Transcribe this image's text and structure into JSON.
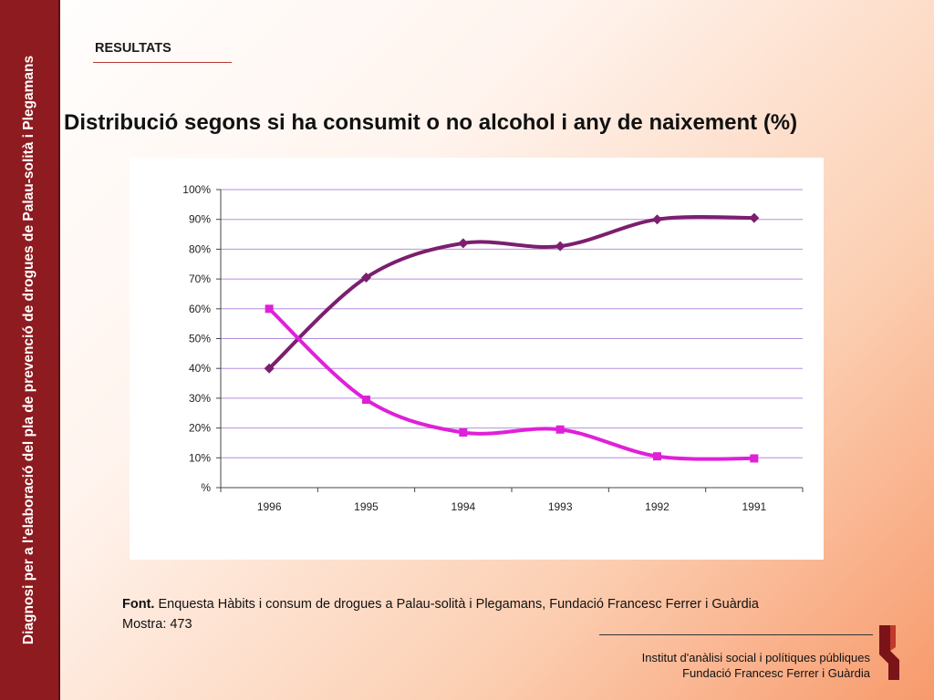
{
  "sidebar": {
    "text": "Diagnosi per a l'elaboració del pla de prevenció de drogues de Palau-solità i Plegamans"
  },
  "header": {
    "section": "RESULTATS",
    "title": "Distribució segons si ha consumit o no alcohol i any de naixement (%)"
  },
  "chart_data": {
    "type": "line",
    "title": "",
    "xlabel": "",
    "ylabel": "",
    "categories": [
      "1996",
      "1995",
      "1994",
      "1993",
      "1992",
      "1991"
    ],
    "y_ticks": [
      "%",
      "10%",
      "20%",
      "30%",
      "40%",
      "50%",
      "60%",
      "70%",
      "80%",
      "90%",
      "100%"
    ],
    "ylim": [
      0,
      100
    ],
    "grid": true,
    "legend": "none",
    "series": [
      {
        "values": [
          40,
          70.5,
          82,
          81,
          90,
          90.5
        ],
        "color": "#7b1f6e",
        "marker": "diamond"
      },
      {
        "values": [
          60,
          29.5,
          18.5,
          19.5,
          10.5,
          9.8
        ],
        "color": "#e020d8",
        "marker": "square"
      }
    ]
  },
  "footer": {
    "source_label": "Font.",
    "source_text": " Enquesta Hàbits i consum de drogues a Palau-solità i Plegamans, Fundació Francesc Ferrer i Guàrdia",
    "sample": "Mostra: 473"
  },
  "institution": {
    "line1": "Institut d'anàlisi social i polítiques públiques",
    "line2": "Fundació Francesc Ferrer i Guàrdia"
  },
  "colors": {
    "sidebar": "#8e1b1f",
    "gridline": "#b58ee0",
    "accent": "#b43a34"
  }
}
